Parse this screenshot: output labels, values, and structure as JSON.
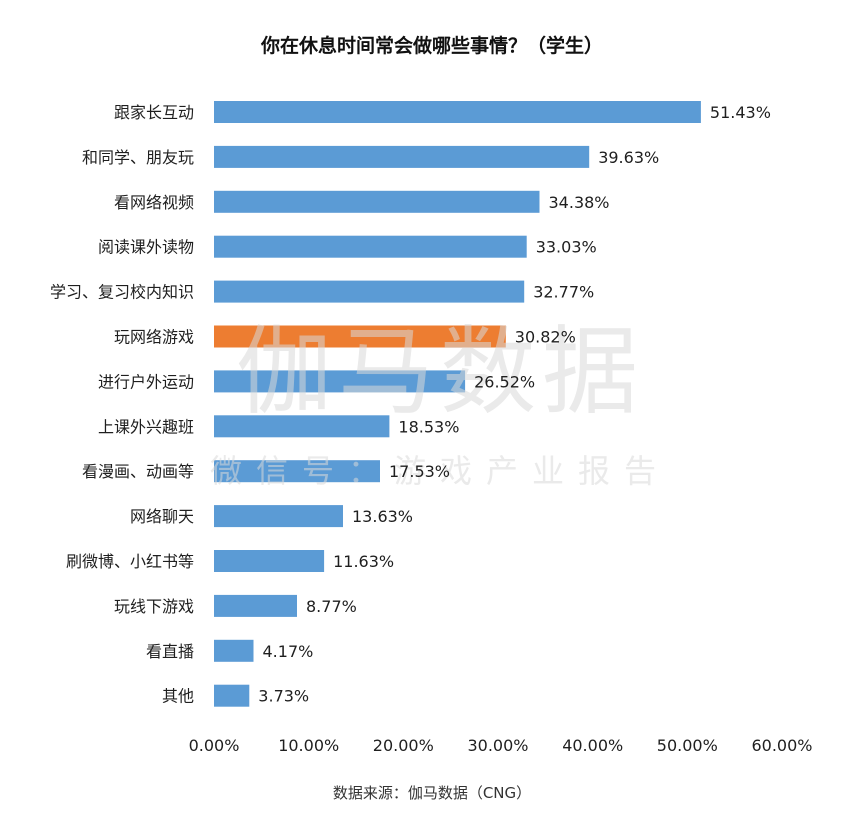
{
  "chart_data": {
    "type": "bar",
    "orientation": "horizontal",
    "title": "你在休息时间常会做哪些事情？（学生）",
    "categories": [
      "跟家长互动",
      "和同学、朋友玩",
      "看网络视频",
      "阅读课外读物",
      "学习、复习校内知识",
      "玩网络游戏",
      "进行户外运动",
      "上课外兴趣班",
      "看漫画、动画等",
      "网络聊天",
      "刷微博、小红书等",
      "玩线下游戏",
      "看直播",
      "其他"
    ],
    "values": [
      51.43,
      39.63,
      34.38,
      33.03,
      32.77,
      30.82,
      26.52,
      18.53,
      17.53,
      13.63,
      11.63,
      8.77,
      4.17,
      3.73
    ],
    "value_labels": [
      "51.43%",
      "39.63%",
      "34.38%",
      "33.03%",
      "32.77%",
      "30.82%",
      "26.52%",
      "18.53%",
      "17.53%",
      "13.63%",
      "11.63%",
      "8.77%",
      "4.17%",
      "3.73%"
    ],
    "highlight_index": 5,
    "xlim": [
      0,
      60
    ],
    "xticks": [
      "0.00%",
      "10.00%",
      "20.00%",
      "30.00%",
      "40.00%",
      "50.00%",
      "60.00%"
    ],
    "xlabel": "",
    "ylabel": "",
    "grid": false,
    "legend": "none",
    "colors": {
      "bar": "#5b9bd5",
      "highlight": "#ed7d31"
    }
  },
  "source": "数据来源：伽马数据（CNG）",
  "watermark": {
    "main": "伽马数据",
    "sub": "微信号：游戏产业报告"
  }
}
